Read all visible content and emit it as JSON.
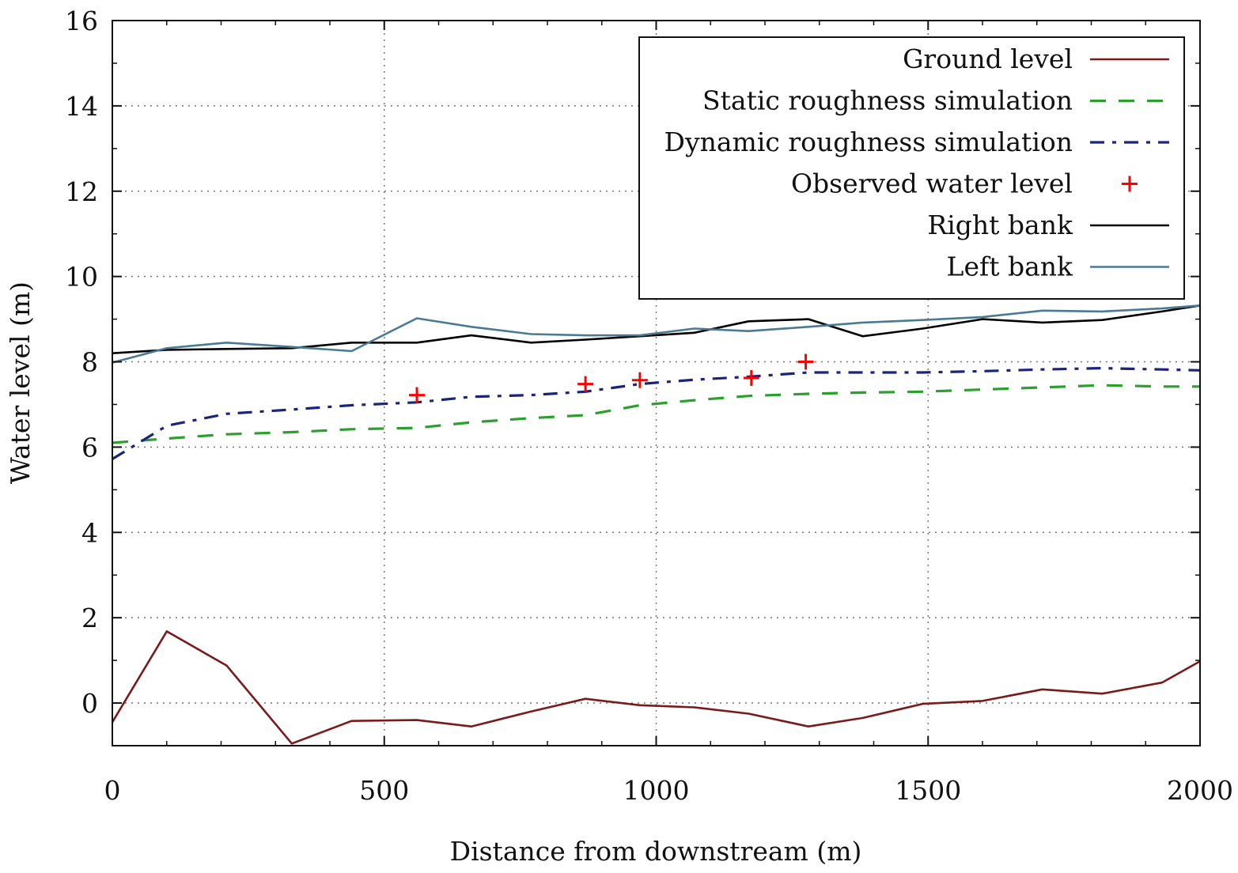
{
  "chart_data": {
    "type": "line",
    "title": "",
    "xlabel": "Distance from downstream (m)",
    "ylabel": "Water level (m)",
    "xlim": [
      0,
      2000
    ],
    "ylim": [
      -1,
      16
    ],
    "xticks": [
      0,
      500,
      1000,
      1500,
      2000
    ],
    "yticks": [
      0,
      2,
      4,
      6,
      8,
      10,
      12,
      14,
      16
    ],
    "xtick_labels": [
      "0",
      "500",
      "1000",
      "1500",
      "2000"
    ],
    "ytick_labels": [
      "0",
      "2",
      "4",
      "6",
      "8",
      "10",
      "12",
      "14",
      "16"
    ],
    "grid": true,
    "legend_position": "top-right",
    "series": [
      {
        "name": "Ground level",
        "style": "solid",
        "color": "#7b1a1a",
        "x": [
          0,
          100,
          210,
          330,
          440,
          560,
          660,
          770,
          870,
          970,
          1070,
          1170,
          1280,
          1380,
          1490,
          1600,
          1710,
          1820,
          1930,
          2000
        ],
        "y": [
          -0.45,
          1.68,
          0.88,
          -0.95,
          -0.42,
          -0.4,
          -0.55,
          -0.2,
          0.1,
          -0.05,
          -0.1,
          -0.25,
          -0.55,
          -0.35,
          -0.02,
          0.05,
          0.32,
          0.22,
          0.48,
          0.98
        ]
      },
      {
        "name": "Static roughness simulation",
        "style": "dashed",
        "color": "#2ca02c",
        "x": [
          0,
          100,
          210,
          330,
          440,
          560,
          660,
          770,
          870,
          970,
          1070,
          1170,
          1280,
          1380,
          1490,
          1600,
          1710,
          1820,
          1930,
          2000
        ],
        "y": [
          6.1,
          6.2,
          6.3,
          6.35,
          6.42,
          6.45,
          6.58,
          6.68,
          6.75,
          6.98,
          7.1,
          7.2,
          7.25,
          7.28,
          7.3,
          7.35,
          7.4,
          7.45,
          7.42,
          7.42
        ]
      },
      {
        "name": "Dynamic roughness simulation",
        "style": "dashdot",
        "color": "#1a237e",
        "x": [
          0,
          100,
          210,
          330,
          440,
          560,
          660,
          770,
          870,
          970,
          1070,
          1170,
          1280,
          1380,
          1490,
          1600,
          1710,
          1820,
          1930,
          2000
        ],
        "y": [
          5.72,
          6.5,
          6.78,
          6.88,
          6.98,
          7.05,
          7.18,
          7.22,
          7.3,
          7.48,
          7.58,
          7.65,
          7.75,
          7.75,
          7.75,
          7.78,
          7.82,
          7.85,
          7.82,
          7.8
        ]
      },
      {
        "name": "Observed water level",
        "style": "markers",
        "color": "#ff0000",
        "x": [
          560,
          870,
          970,
          1175,
          1275
        ],
        "y": [
          7.22,
          7.48,
          7.57,
          7.62,
          8.0
        ]
      },
      {
        "name": "Right bank",
        "style": "solid",
        "color": "#000000",
        "x": [
          0,
          100,
          210,
          330,
          440,
          560,
          660,
          770,
          870,
          970,
          1070,
          1170,
          1280,
          1380,
          1490,
          1600,
          1710,
          1820,
          1930,
          2000
        ],
        "y": [
          8.2,
          8.28,
          8.3,
          8.32,
          8.45,
          8.45,
          8.62,
          8.45,
          8.52,
          8.6,
          8.68,
          8.95,
          9.0,
          8.6,
          8.78,
          9.0,
          8.92,
          8.98,
          9.18,
          9.32
        ]
      },
      {
        "name": "Left bank",
        "style": "solid",
        "color": "#4a7a94",
        "x": [
          0,
          100,
          210,
          330,
          440,
          560,
          660,
          770,
          870,
          970,
          1070,
          1170,
          1280,
          1380,
          1490,
          1600,
          1710,
          1820,
          1930,
          2000
        ],
        "y": [
          7.98,
          8.32,
          8.45,
          8.35,
          8.25,
          9.02,
          8.82,
          8.65,
          8.62,
          8.62,
          8.78,
          8.72,
          8.82,
          8.92,
          8.98,
          9.05,
          9.2,
          9.18,
          9.25,
          9.32
        ]
      }
    ]
  }
}
